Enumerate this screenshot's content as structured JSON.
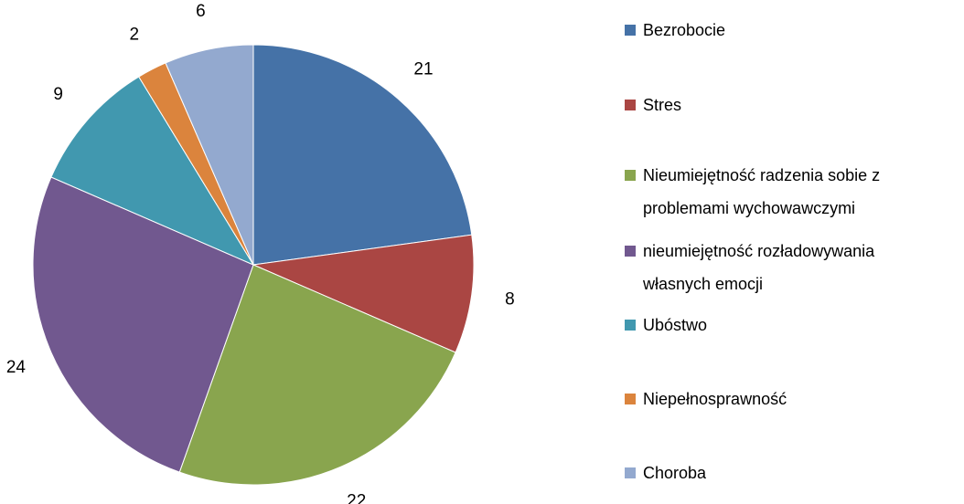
{
  "chart_data": {
    "type": "pie",
    "categories": [
      "Bezrobocie",
      "Stres",
      "Nieumiejętność radzenia sobie z problemami wychowawczymi",
      "nieumiejętność rozładowywania własnych emocji",
      "Ubóstwo",
      "Niepełnosprawność",
      "Choroba"
    ],
    "values": [
      21,
      8,
      22,
      24,
      9,
      2,
      6
    ],
    "colors": [
      "#4572a7",
      "#aa4643",
      "#89a54e",
      "#71588f",
      "#4198af",
      "#db843d",
      "#93a9cf"
    ],
    "legend": "right"
  }
}
